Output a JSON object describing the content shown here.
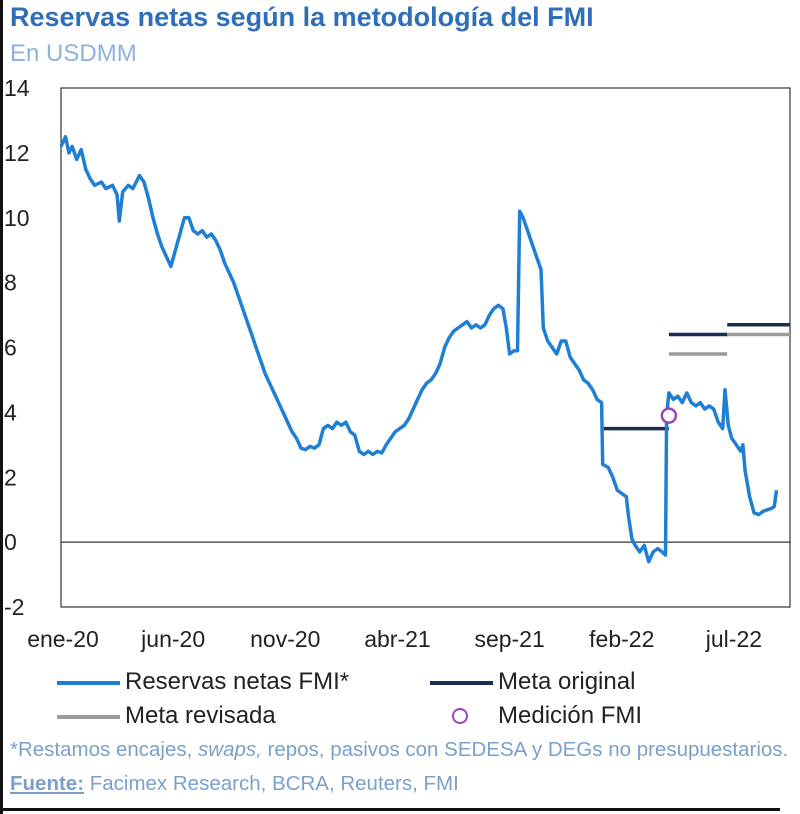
{
  "header": {
    "title": "Reservas netas según la metodología del FMI",
    "subtitle": "En USDMM"
  },
  "legend": {
    "series_label": "Reservas netas FMI*",
    "original_label": "Meta original",
    "revised_label": "Meta revisada",
    "measurement_label": "Medición FMI"
  },
  "footnote": {
    "part1": "*Restamos encajes, ",
    "swaps": "swaps,",
    "part2": " repos, pasivos con SEDESA y DEGs no presupuestarios. ",
    "source_label": "Fuente:",
    "source_text": " Facimex Research, BCRA, Reuters, FMI"
  },
  "colors": {
    "series": "#1f7fd3",
    "meta_original": "#1a2c52",
    "meta_revisada": "#9b9b9b",
    "medicion": "#9b44c0",
    "title": "#2f6fba",
    "subtitle": "#8fb2dc"
  },
  "chart_data": {
    "type": "line",
    "title": "Reservas netas según la metodología del FMI",
    "ylabel": "En USDMM",
    "ylim": [
      -2,
      14
    ],
    "yticks": [
      14,
      12,
      10,
      8,
      6,
      4,
      2,
      0,
      -2
    ],
    "xlim": [
      0,
      32.5
    ],
    "xtick_labels": [
      {
        "label": "ene-20",
        "month": 0
      },
      {
        "label": "jun-20",
        "month": 5
      },
      {
        "label": "nov-20",
        "month": 10
      },
      {
        "label": "abr-21",
        "month": 15
      },
      {
        "label": "sep-21",
        "month": 20
      },
      {
        "label": "feb-22",
        "month": 25
      },
      {
        "label": "jul-22",
        "month": 30
      }
    ],
    "x_unit": "months since Jan-2020",
    "series": [
      {
        "name": "Reservas netas FMI*",
        "points": [
          [
            0.0,
            12.2
          ],
          [
            0.2,
            12.5
          ],
          [
            0.35,
            12.0
          ],
          [
            0.5,
            12.2
          ],
          [
            0.7,
            11.8
          ],
          [
            0.9,
            12.1
          ],
          [
            1.1,
            11.5
          ],
          [
            1.3,
            11.2
          ],
          [
            1.5,
            11.0
          ],
          [
            1.8,
            11.1
          ],
          [
            2.0,
            10.9
          ],
          [
            2.3,
            11.0
          ],
          [
            2.5,
            10.7
          ],
          [
            2.6,
            9.9
          ],
          [
            2.75,
            10.8
          ],
          [
            3.0,
            11.0
          ],
          [
            3.2,
            10.9
          ],
          [
            3.5,
            11.3
          ],
          [
            3.7,
            11.1
          ],
          [
            3.9,
            10.6
          ],
          [
            4.1,
            10.0
          ],
          [
            4.3,
            9.5
          ],
          [
            4.5,
            9.1
          ],
          [
            4.7,
            8.8
          ],
          [
            4.9,
            8.5
          ],
          [
            5.1,
            9.0
          ],
          [
            5.3,
            9.5
          ],
          [
            5.5,
            10.0
          ],
          [
            5.7,
            10.0
          ],
          [
            5.9,
            9.6
          ],
          [
            6.1,
            9.5
          ],
          [
            6.3,
            9.6
          ],
          [
            6.5,
            9.4
          ],
          [
            6.7,
            9.5
          ],
          [
            6.9,
            9.3
          ],
          [
            7.1,
            9.0
          ],
          [
            7.3,
            8.6
          ],
          [
            7.5,
            8.3
          ],
          [
            7.7,
            8.0
          ],
          [
            7.9,
            7.6
          ],
          [
            8.1,
            7.2
          ],
          [
            8.3,
            6.8
          ],
          [
            8.5,
            6.4
          ],
          [
            8.7,
            6.0
          ],
          [
            8.9,
            5.6
          ],
          [
            9.1,
            5.2
          ],
          [
            9.3,
            4.9
          ],
          [
            9.5,
            4.6
          ],
          [
            9.7,
            4.3
          ],
          [
            9.9,
            4.0
          ],
          [
            10.1,
            3.7
          ],
          [
            10.3,
            3.4
          ],
          [
            10.5,
            3.2
          ],
          [
            10.7,
            2.9
          ],
          [
            10.9,
            2.85
          ],
          [
            11.1,
            2.95
          ],
          [
            11.3,
            2.9
          ],
          [
            11.5,
            3.0
          ],
          [
            11.7,
            3.5
          ],
          [
            11.9,
            3.6
          ],
          [
            12.1,
            3.5
          ],
          [
            12.3,
            3.7
          ],
          [
            12.5,
            3.6
          ],
          [
            12.7,
            3.7
          ],
          [
            12.9,
            3.4
          ],
          [
            13.1,
            3.3
          ],
          [
            13.3,
            2.8
          ],
          [
            13.5,
            2.7
          ],
          [
            13.7,
            2.8
          ],
          [
            13.9,
            2.7
          ],
          [
            14.1,
            2.8
          ],
          [
            14.3,
            2.75
          ],
          [
            14.5,
            3.0
          ],
          [
            14.7,
            3.2
          ],
          [
            14.9,
            3.4
          ],
          [
            15.1,
            3.5
          ],
          [
            15.3,
            3.6
          ],
          [
            15.5,
            3.8
          ],
          [
            15.7,
            4.1
          ],
          [
            15.9,
            4.4
          ],
          [
            16.1,
            4.7
          ],
          [
            16.3,
            4.9
          ],
          [
            16.5,
            5.0
          ],
          [
            16.7,
            5.2
          ],
          [
            16.9,
            5.5
          ],
          [
            17.1,
            6.0
          ],
          [
            17.3,
            6.3
          ],
          [
            17.5,
            6.5
          ],
          [
            17.7,
            6.6
          ],
          [
            17.9,
            6.7
          ],
          [
            18.1,
            6.8
          ],
          [
            18.3,
            6.6
          ],
          [
            18.5,
            6.7
          ],
          [
            18.7,
            6.6
          ],
          [
            18.9,
            6.7
          ],
          [
            19.1,
            7.0
          ],
          [
            19.3,
            7.2
          ],
          [
            19.5,
            7.3
          ],
          [
            19.7,
            7.2
          ],
          [
            19.85,
            6.6
          ],
          [
            20.0,
            5.8
          ],
          [
            20.2,
            5.9
          ],
          [
            20.35,
            5.9
          ],
          [
            20.45,
            10.2
          ],
          [
            20.6,
            10.0
          ],
          [
            20.8,
            9.6
          ],
          [
            21.0,
            9.2
          ],
          [
            21.2,
            8.8
          ],
          [
            21.4,
            8.4
          ],
          [
            21.5,
            6.6
          ],
          [
            21.7,
            6.2
          ],
          [
            21.9,
            6.0
          ],
          [
            22.1,
            5.8
          ],
          [
            22.3,
            6.2
          ],
          [
            22.5,
            6.2
          ],
          [
            22.7,
            5.7
          ],
          [
            22.9,
            5.5
          ],
          [
            23.1,
            5.3
          ],
          [
            23.3,
            5.0
          ],
          [
            23.5,
            4.9
          ],
          [
            23.7,
            4.7
          ],
          [
            23.9,
            4.4
          ],
          [
            24.1,
            4.3
          ],
          [
            24.15,
            2.4
          ],
          [
            24.4,
            2.3
          ],
          [
            24.6,
            2.0
          ],
          [
            24.8,
            1.6
          ],
          [
            25.0,
            1.5
          ],
          [
            25.2,
            1.4
          ],
          [
            25.3,
            0.8
          ],
          [
            25.45,
            0.1
          ],
          [
            25.6,
            -0.1
          ],
          [
            25.8,
            -0.3
          ],
          [
            26.0,
            -0.1
          ],
          [
            26.2,
            -0.6
          ],
          [
            26.4,
            -0.3
          ],
          [
            26.6,
            -0.2
          ],
          [
            26.8,
            -0.3
          ],
          [
            26.95,
            -0.4
          ],
          [
            27.0,
            3.9
          ],
          [
            27.1,
            4.6
          ],
          [
            27.3,
            4.4
          ],
          [
            27.5,
            4.5
          ],
          [
            27.7,
            4.3
          ],
          [
            27.9,
            4.6
          ],
          [
            28.1,
            4.3
          ],
          [
            28.3,
            4.2
          ],
          [
            28.5,
            4.3
          ],
          [
            28.7,
            4.1
          ],
          [
            28.9,
            4.2
          ],
          [
            29.1,
            4.1
          ],
          [
            29.3,
            3.7
          ],
          [
            29.5,
            3.5
          ],
          [
            29.6,
            4.7
          ],
          [
            29.75,
            3.6
          ],
          [
            29.9,
            3.2
          ],
          [
            30.1,
            3.0
          ],
          [
            30.3,
            2.8
          ],
          [
            30.4,
            3.0
          ],
          [
            30.5,
            2.2
          ],
          [
            30.7,
            1.4
          ],
          [
            30.9,
            0.9
          ],
          [
            31.1,
            0.85
          ],
          [
            31.3,
            0.95
          ],
          [
            31.5,
            1.0
          ],
          [
            31.7,
            1.05
          ],
          [
            31.8,
            1.1
          ],
          [
            31.9,
            1.6
          ]
        ]
      }
    ],
    "meta_original": [
      {
        "x_start": 24.2,
        "x_end": 27.1,
        "value": 3.5
      },
      {
        "x_start": 27.1,
        "x_end": 29.7,
        "value": 6.4
      },
      {
        "x_start": 29.7,
        "x_end": 32.5,
        "value": 6.7
      }
    ],
    "meta_revisada": [
      {
        "x_start": 27.1,
        "x_end": 29.7,
        "value": 5.8
      },
      {
        "x_start": 29.7,
        "x_end": 32.5,
        "value": 6.4
      }
    ],
    "medicion_fmi": [
      {
        "x": 27.1,
        "value": 3.9
      }
    ]
  }
}
